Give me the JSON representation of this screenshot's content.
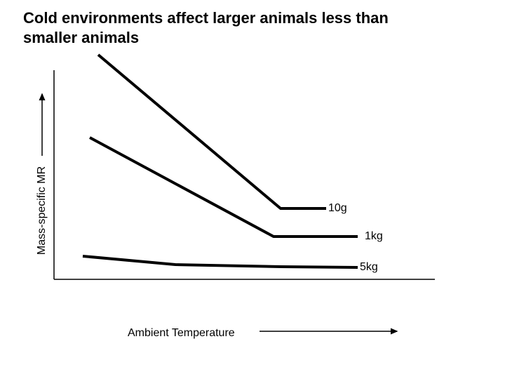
{
  "title_lines": [
    "Cold environments affect larger animals less than",
    "smaller animals"
  ],
  "y_axis_label": "Mass-specific MR",
  "x_axis_label": "Ambient Temperature",
  "curve_labels": [
    "10g",
    "1kg",
    "5kg"
  ]
}
